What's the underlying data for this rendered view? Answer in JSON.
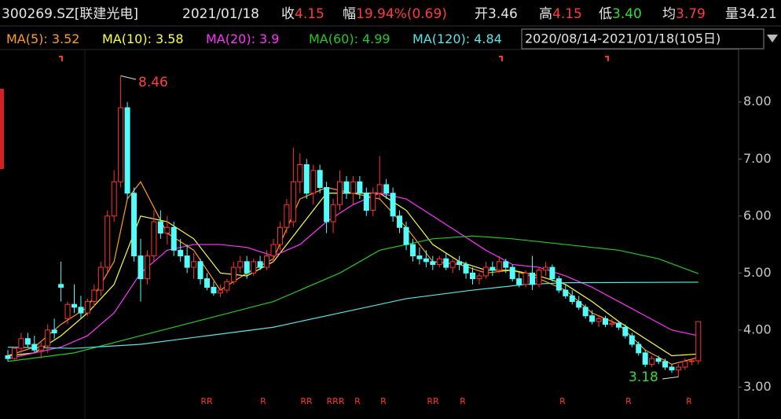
{
  "chart_data": {
    "type": "candlestick",
    "title": "300269.SZ[联建光电]",
    "date": "2021/01/18",
    "quote": [
      {
        "label": "收",
        "value": "4.15",
        "color": "#ff3b3b"
      },
      {
        "label": "幅",
        "value": "19.94%(0.69)",
        "color": "#ff3b3b"
      },
      {
        "label": "开",
        "value": "3.46",
        "color": "#e6e6e6"
      },
      {
        "label": "高",
        "value": "4.15",
        "color": "#ff3b3b"
      },
      {
        "label": "低",
        "value": "3.40",
        "color": "#33dd33"
      },
      {
        "label": "均",
        "value": "3.79",
        "color": "#ff3b3b"
      },
      {
        "label": "量",
        "value": "34.21",
        "color": "#e6e6e6"
      }
    ],
    "range": "2020/08/14-2021/01/18(105日)",
    "up_color": "#ff3232",
    "down_color": "#54fcfc",
    "open": [
      3.55,
      3.5,
      3.68,
      3.85,
      3.75,
      3.65,
      3.72,
      4.0,
      4.8,
      4.2,
      4.45,
      4.4,
      4.3,
      4.5,
      4.7,
      5.1,
      6.0,
      6.6,
      7.9,
      6.4,
      5.3,
      4.9,
      5.3,
      5.9,
      5.7,
      5.8,
      5.4,
      5.3,
      5.1,
      5.2,
      4.9,
      4.75,
      4.65,
      4.7,
      4.85,
      5.1,
      5.2,
      5.0,
      5.2,
      5.1,
      5.3,
      5.5,
      5.8,
      5.9,
      6.6,
      6.9,
      6.4,
      6.8,
      6.5,
      5.9,
      6.2,
      6.6,
      6.4,
      6.6,
      6.4,
      6.1,
      6.4,
      6.55,
      6.4,
      6.0,
      5.8,
      5.5,
      5.3,
      5.25,
      5.2,
      5.15,
      5.25,
      5.1,
      5.2,
      5.15,
      5.0,
      4.9,
      4.95,
      5.1,
      5.05,
      5.2,
      5.1,
      4.9,
      4.8,
      5.0,
      4.8,
      5.05,
      5.1,
      4.9,
      4.7,
      4.6,
      4.5,
      4.4,
      4.25,
      4.15,
      4.2,
      4.1,
      4.12,
      4.05,
      3.9,
      3.75,
      3.6,
      3.4,
      3.5,
      3.45,
      3.35,
      3.3,
      3.35,
      3.45,
      3.46
    ],
    "high": [
      3.65,
      3.7,
      3.95,
      3.95,
      3.9,
      3.8,
      4.1,
      4.2,
      5.2,
      4.5,
      4.8,
      4.6,
      4.55,
      4.8,
      5.2,
      6.1,
      6.8,
      8.46,
      8.0,
      6.5,
      5.6,
      5.4,
      6.1,
      6.1,
      6.0,
      5.9,
      5.6,
      5.5,
      5.35,
      5.25,
      5.0,
      4.85,
      4.8,
      4.9,
      5.2,
      5.3,
      5.3,
      5.25,
      5.3,
      5.4,
      5.6,
      5.9,
      6.3,
      7.2,
      7.1,
      7.0,
      6.9,
      6.9,
      6.6,
      6.3,
      6.8,
      6.7,
      6.7,
      6.7,
      6.5,
      6.5,
      7.05,
      6.65,
      6.5,
      6.1,
      5.9,
      5.6,
      5.45,
      5.4,
      5.3,
      5.3,
      5.35,
      5.25,
      5.3,
      5.2,
      5.1,
      5.0,
      5.2,
      5.2,
      5.3,
      5.25,
      5.15,
      5.0,
      5.05,
      5.3,
      5.1,
      5.2,
      5.15,
      4.95,
      4.8,
      4.7,
      4.6,
      4.45,
      4.35,
      4.25,
      4.25,
      4.2,
      4.15,
      4.1,
      3.95,
      3.8,
      3.65,
      3.55,
      3.55,
      3.5,
      3.4,
      3.4,
      3.5,
      3.5,
      4.15
    ],
    "low": [
      3.45,
      3.48,
      3.6,
      3.7,
      3.6,
      3.5,
      3.6,
      3.85,
      4.5,
      4.1,
      4.3,
      4.2,
      4.25,
      4.4,
      4.6,
      5.0,
      5.9,
      6.5,
      6.3,
      5.2,
      4.5,
      4.8,
      5.2,
      5.6,
      5.5,
      5.3,
      5.2,
      5.0,
      4.9,
      4.8,
      4.7,
      4.6,
      4.58,
      4.65,
      4.8,
      5.0,
      4.9,
      4.95,
      5.05,
      5.05,
      5.2,
      5.4,
      5.7,
      5.8,
      6.4,
      6.3,
      6.2,
      6.4,
      5.7,
      5.7,
      6.1,
      6.3,
      6.2,
      6.3,
      6.0,
      6.0,
      6.3,
      6.3,
      5.9,
      5.7,
      5.4,
      5.2,
      5.15,
      5.1,
      5.05,
      5.1,
      5.05,
      5.0,
      5.05,
      4.9,
      4.8,
      4.8,
      4.9,
      4.95,
      5.0,
      5.0,
      4.85,
      4.75,
      4.75,
      4.7,
      4.75,
      4.95,
      4.85,
      4.65,
      4.55,
      4.45,
      4.35,
      4.2,
      4.1,
      4.05,
      4.05,
      4.05,
      4.0,
      3.85,
      3.7,
      3.55,
      3.35,
      3.35,
      3.4,
      3.3,
      3.25,
      3.18,
      3.3,
      3.38,
      3.4
    ],
    "close": [
      3.5,
      3.68,
      3.85,
      3.75,
      3.65,
      3.72,
      4.0,
      3.95,
      4.75,
      4.45,
      4.4,
      4.3,
      4.5,
      4.7,
      5.1,
      6.0,
      6.6,
      7.9,
      6.4,
      5.3,
      4.9,
      5.3,
      5.9,
      5.7,
      5.8,
      5.4,
      5.3,
      5.1,
      5.2,
      4.9,
      4.75,
      4.65,
      4.7,
      4.85,
      5.1,
      5.2,
      5.0,
      5.2,
      5.1,
      5.3,
      5.5,
      5.8,
      6.2,
      6.6,
      6.9,
      6.4,
      6.8,
      6.5,
      5.9,
      6.2,
      6.6,
      6.4,
      6.6,
      6.4,
      6.1,
      6.4,
      6.55,
      6.4,
      6.0,
      5.8,
      5.5,
      5.3,
      5.25,
      5.2,
      5.15,
      5.25,
      5.1,
      5.2,
      5.15,
      5.0,
      4.9,
      4.95,
      5.1,
      5.05,
      5.2,
      5.1,
      4.9,
      4.8,
      5.0,
      4.8,
      5.05,
      5.1,
      4.9,
      4.7,
      4.6,
      4.5,
      4.4,
      4.25,
      4.15,
      4.2,
      4.1,
      4.12,
      4.05,
      3.9,
      3.75,
      3.6,
      3.4,
      3.5,
      3.45,
      3.35,
      3.3,
      3.35,
      3.45,
      3.46,
      4.15
    ],
    "series": [
      {
        "name": "MA(5):",
        "color": "#ff9c1a",
        "x": [
          0,
          4,
          8,
          12,
          16,
          18,
          20,
          24,
          28,
          32,
          36,
          40,
          44,
          48,
          52,
          56,
          60,
          64,
          68,
          72,
          76,
          80,
          84,
          88,
          92,
          96,
          100,
          104
        ],
        "values": [
          3.55,
          3.7,
          4.1,
          4.4,
          5.2,
          6.3,
          6.6,
          5.7,
          5.4,
          4.7,
          5.0,
          5.25,
          6.3,
          6.5,
          6.4,
          6.3,
          5.8,
          5.2,
          5.15,
          5.0,
          5.05,
          4.9,
          4.7,
          4.3,
          4.1,
          3.65,
          3.4,
          3.52
        ]
      },
      {
        "name": "MA(10):",
        "color": "#ffff3a",
        "x": [
          0,
          4,
          8,
          12,
          16,
          20,
          24,
          28,
          32,
          36,
          40,
          44,
          48,
          52,
          56,
          60,
          64,
          68,
          72,
          76,
          80,
          84,
          88,
          92,
          96,
          100,
          104
        ],
        "values": [
          3.55,
          3.6,
          3.9,
          4.3,
          4.8,
          6.0,
          5.9,
          5.6,
          5.0,
          4.95,
          5.2,
          5.8,
          6.4,
          6.4,
          6.4,
          6.1,
          5.5,
          5.2,
          5.05,
          5.05,
          4.95,
          4.8,
          4.5,
          4.15,
          3.85,
          3.55,
          3.58
        ]
      },
      {
        "name": "MA(20):",
        "color": "#ff33ff",
        "x": [
          0,
          8,
          12,
          16,
          20,
          24,
          28,
          32,
          36,
          40,
          44,
          48,
          52,
          56,
          60,
          64,
          68,
          72,
          76,
          80,
          84,
          88,
          92,
          96,
          100,
          104
        ],
        "values": [
          3.5,
          3.7,
          3.9,
          4.3,
          5.0,
          5.4,
          5.5,
          5.5,
          5.45,
          5.3,
          5.5,
          5.9,
          6.2,
          6.4,
          6.3,
          6.0,
          5.7,
          5.4,
          5.15,
          5.1,
          4.95,
          4.75,
          4.5,
          4.25,
          4.0,
          3.9
        ]
      },
      {
        "name": "MA(60):",
        "color": "#22c922",
        "x": [
          0,
          10,
          20,
          30,
          40,
          50,
          56,
          64,
          70,
          76,
          84,
          92,
          98,
          104
        ],
        "values": [
          3.45,
          3.6,
          3.9,
          4.2,
          4.5,
          5.0,
          5.4,
          5.6,
          5.65,
          5.6,
          5.5,
          5.4,
          5.25,
          4.99
        ]
      },
      {
        "name": "MA(120):",
        "color": "#55e6e6",
        "x": [
          0,
          10,
          20,
          30,
          40,
          50,
          60,
          70,
          78,
          84,
          104
        ],
        "values": [
          3.7,
          3.68,
          3.75,
          3.9,
          4.05,
          4.3,
          4.55,
          4.7,
          4.8,
          4.83,
          4.84
        ]
      }
    ],
    "signals": [
      "RR",
      "R",
      "RR",
      "RRR",
      "R",
      "R",
      "RR",
      "R",
      "R",
      "R",
      "R"
    ],
    "ylim": [
      2.44,
      8.92
    ],
    "yticks": [
      {
        "value": 3,
        "label": "3.00"
      },
      {
        "value": 4,
        "label": "4.00"
      },
      {
        "value": 5,
        "label": "5.00"
      },
      {
        "value": 6,
        "label": "6.00"
      },
      {
        "value": 7,
        "label": "7.00"
      },
      {
        "value": 8,
        "label": "8.00"
      }
    ]
  }
}
